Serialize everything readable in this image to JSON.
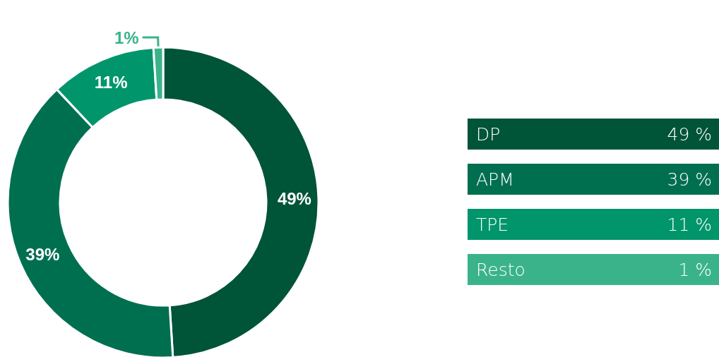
{
  "chart_data": {
    "type": "donut",
    "categories": [
      "DP",
      "APM",
      "TPE",
      "Resto"
    ],
    "values": [
      49,
      39,
      11,
      1
    ],
    "colors": [
      "#005437",
      "#006f50",
      "#00956b",
      "#3ab38b"
    ],
    "value_labels": [
      "49%",
      "39%",
      "11%",
      "1%"
    ],
    "annotations": [
      "49 %",
      "39 %",
      "11 %",
      "1 %"
    ],
    "legend": "right"
  }
}
